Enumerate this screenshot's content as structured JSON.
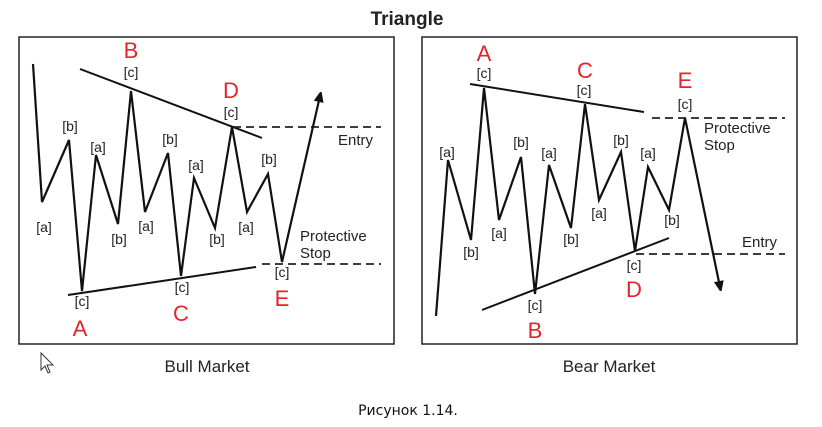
{
  "title": "Triangle",
  "caption": "Рисунок 1.14.",
  "colors": {
    "accent_red": "#e4242a",
    "line": "#111111",
    "frame": "#222222"
  },
  "bull": {
    "subtitle": "Bull Market",
    "points": {
      "A": "A",
      "B": "B",
      "C": "C",
      "D": "D",
      "E": "E"
    },
    "subwaves": {
      "a": "[a]",
      "b": "[b]",
      "c": "[c]"
    },
    "entry": "Entry",
    "stop_line1": "Protective",
    "stop_line2": "Stop"
  },
  "bear": {
    "subtitle": "Bear Market",
    "points": {
      "A": "A",
      "B": "B",
      "C": "C",
      "D": "D",
      "E": "E"
    },
    "subwaves": {
      "a": "[a]",
      "b": "[b]",
      "c": "[c]"
    },
    "entry": "Entry",
    "stop_line1": "Protective",
    "stop_line2": "Stop"
  },
  "cursor_icon": "mouse-pointer-icon"
}
